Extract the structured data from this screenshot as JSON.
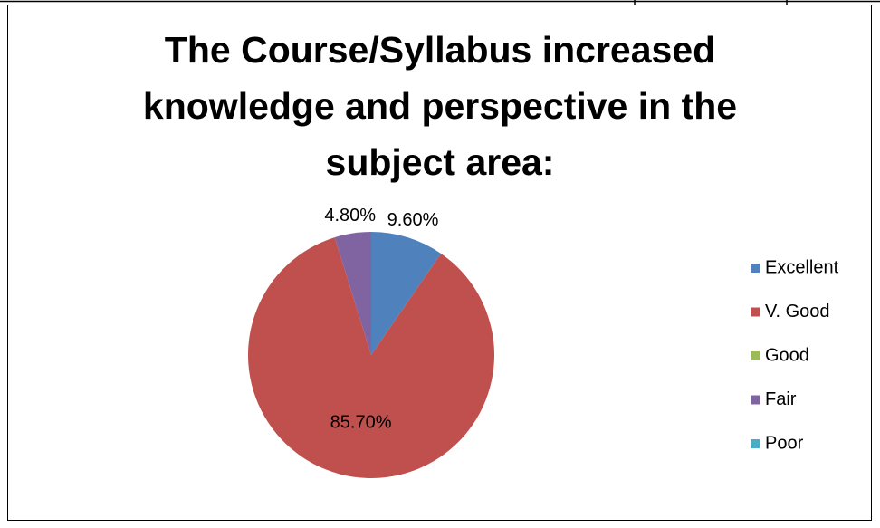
{
  "chart_data": {
    "type": "pie",
    "title": "The Course/Syllabus increased knowledge and perspective in the subject area:",
    "categories": [
      "Excellent",
      "V. Good",
      "Good",
      "Fair",
      "Poor"
    ],
    "values": [
      9.6,
      85.7,
      0,
      4.8,
      0
    ],
    "value_labels": [
      "9.60%",
      "85.70%",
      null,
      "4.80%",
      null
    ],
    "colors": [
      "#4f81bd",
      "#c0504d",
      "#9bbb59",
      "#8064a2",
      "#4bacc6"
    ],
    "legend": "right"
  }
}
